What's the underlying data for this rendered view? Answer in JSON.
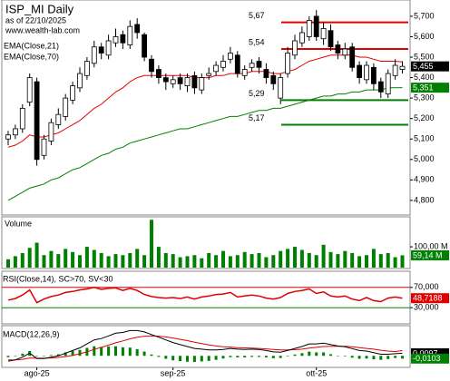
{
  "chart_data": [
    {
      "type": "candlestick",
      "title": "ISP_MI Daily",
      "subtitle": "as of 22/10/2025",
      "source": "www.wealth-lab.com",
      "categories": [
        null,
        null,
        null,
        null,
        "ago-25",
        null,
        null,
        null,
        null,
        null,
        null,
        null,
        null,
        null,
        null,
        null,
        null,
        null,
        null,
        null,
        null,
        null,
        null,
        "sep-25",
        null,
        null,
        null,
        null,
        null,
        null,
        null,
        null,
        null,
        null,
        null,
        null,
        null,
        null,
        null,
        null,
        null,
        null,
        null,
        "ott-25",
        null,
        null,
        null,
        null,
        null,
        null,
        null,
        null,
        null,
        null,
        null,
        null
      ],
      "open": [
        5.1,
        5.12,
        5.15,
        5.28,
        5.38,
        5.02,
        5.09,
        5.17,
        5.21,
        5.29,
        5.35,
        5.41,
        5.47,
        5.55,
        5.51,
        5.57,
        5.61,
        5.56,
        5.66,
        5.61,
        5.49,
        5.44,
        5.4,
        5.37,
        5.4,
        5.36,
        5.41,
        5.34,
        5.41,
        5.43,
        5.45,
        5.49,
        5.51,
        5.41,
        5.45,
        5.48,
        5.44,
        5.41,
        5.3,
        5.42,
        5.51,
        5.57,
        5.6,
        5.7,
        5.59,
        5.63,
        5.56,
        5.51,
        5.55,
        5.46,
        5.39,
        5.45,
        5.38,
        5.32,
        5.41,
        5.44
      ],
      "high": [
        5.14,
        5.17,
        5.27,
        5.42,
        5.4,
        5.12,
        5.2,
        5.25,
        5.32,
        5.38,
        5.45,
        5.5,
        5.58,
        5.57,
        5.61,
        5.64,
        5.63,
        5.68,
        5.69,
        5.62,
        5.51,
        5.46,
        5.42,
        5.41,
        5.42,
        5.42,
        5.43,
        5.42,
        5.45,
        5.48,
        5.51,
        5.55,
        5.53,
        5.46,
        5.49,
        5.5,
        5.47,
        5.43,
        5.42,
        5.55,
        5.61,
        5.65,
        5.7,
        5.73,
        5.67,
        5.66,
        5.58,
        5.57,
        5.57,
        5.48,
        5.48,
        5.47,
        5.4,
        5.44,
        5.49,
        5.48
      ],
      "low": [
        5.07,
        5.1,
        5.13,
        5.26,
        4.97,
        5.0,
        5.07,
        5.15,
        5.19,
        5.27,
        5.33,
        5.39,
        5.45,
        5.49,
        5.49,
        5.55,
        5.54,
        5.54,
        5.59,
        5.48,
        5.4,
        5.37,
        5.34,
        5.35,
        5.34,
        5.33,
        5.32,
        5.32,
        5.39,
        5.41,
        5.43,
        5.47,
        5.4,
        5.39,
        5.43,
        5.42,
        5.37,
        5.34,
        5.27,
        5.4,
        5.49,
        5.55,
        5.58,
        5.58,
        5.56,
        5.53,
        5.49,
        5.49,
        5.43,
        5.37,
        5.37,
        5.34,
        5.3,
        5.3,
        5.39,
        5.42
      ],
      "close": [
        5.12,
        5.15,
        5.25,
        5.4,
        5.0,
        5.1,
        5.18,
        5.22,
        5.3,
        5.36,
        5.42,
        5.48,
        5.55,
        5.52,
        5.58,
        5.6,
        5.57,
        5.65,
        5.62,
        5.5,
        5.43,
        5.4,
        5.38,
        5.39,
        5.37,
        5.4,
        5.35,
        5.4,
        5.42,
        5.46,
        5.48,
        5.52,
        5.42,
        5.44,
        5.47,
        5.45,
        5.4,
        5.37,
        5.4,
        5.52,
        5.58,
        5.62,
        5.68,
        5.6,
        5.64,
        5.55,
        5.52,
        5.54,
        5.45,
        5.4,
        5.46,
        5.37,
        5.33,
        5.42,
        5.46,
        5.455
      ],
      "series": [
        {
          "name": "EMA(Close,21)",
          "color": "#e00000",
          "values": [
            5.06,
            5.07,
            5.09,
            5.12,
            5.11,
            5.11,
            5.12,
            5.13,
            5.15,
            5.17,
            5.19,
            5.22,
            5.25,
            5.27,
            5.3,
            5.33,
            5.35,
            5.38,
            5.4,
            5.41,
            5.41,
            5.41,
            5.41,
            5.41,
            5.41,
            5.41,
            5.4,
            5.4,
            5.4,
            5.41,
            5.41,
            5.42,
            5.42,
            5.42,
            5.43,
            5.43,
            5.43,
            5.42,
            5.42,
            5.43,
            5.44,
            5.46,
            5.48,
            5.49,
            5.5,
            5.51,
            5.51,
            5.51,
            5.51,
            5.5,
            5.5,
            5.49,
            5.48,
            5.48,
            5.48,
            5.477
          ]
        },
        {
          "name": "EMA(Close,70)",
          "color": "#008000",
          "values": [
            4.8,
            4.82,
            4.84,
            4.86,
            4.87,
            4.88,
            4.9,
            4.91,
            4.93,
            4.95,
            4.96,
            4.98,
            5.0,
            5.02,
            5.03,
            5.05,
            5.06,
            5.08,
            5.09,
            5.1,
            5.11,
            5.12,
            5.13,
            5.14,
            5.15,
            5.15,
            5.16,
            5.17,
            5.18,
            5.19,
            5.2,
            5.21,
            5.21,
            5.22,
            5.23,
            5.24,
            5.24,
            5.25,
            5.25,
            5.26,
            5.27,
            5.28,
            5.29,
            5.3,
            5.31,
            5.31,
            5.32,
            5.32,
            5.33,
            5.33,
            5.34,
            5.34,
            5.34,
            5.35,
            5.35,
            5.351
          ]
        }
      ],
      "levels": [
        {
          "value": 5.67,
          "label": "5,67",
          "color": "#e00000"
        },
        {
          "value": 5.54,
          "label": "5,54",
          "color": "#e00000"
        },
        {
          "value": 5.29,
          "label": "5,29",
          "color": "#008000"
        },
        {
          "value": 5.17,
          "label": "5,17",
          "color": "#008000"
        }
      ],
      "markers": [
        {
          "value": 5.455,
          "label": "5,455",
          "color": "#000000"
        },
        {
          "value": 5.351,
          "label": "5,351",
          "color": "#008000"
        }
      ],
      "ylim": [
        4.733,
        5.775
      ],
      "yticks": [
        {
          "value": 4.8,
          "label": "4,800"
        },
        {
          "value": 4.9,
          "label": "4,900"
        },
        {
          "value": 5.0,
          "label": "5,000"
        },
        {
          "value": 5.1,
          "label": "5,100"
        },
        {
          "value": 5.2,
          "label": "5,200"
        },
        {
          "value": 5.3,
          "label": "5,300"
        },
        {
          "value": 5.4,
          "label": "5,400"
        },
        {
          "value": 5.5,
          "label": "5,500"
        },
        {
          "value": 5.6,
          "label": "5,600"
        },
        {
          "value": 5.7,
          "label": "5,700"
        }
      ]
    },
    {
      "type": "bar",
      "title": "Volume",
      "color": "#008000",
      "values": [
        40,
        55,
        70,
        95,
        120,
        60,
        80,
        65,
        90,
        75,
        60,
        100,
        85,
        70,
        55,
        65,
        60,
        70,
        90,
        60,
        230,
        100,
        70,
        65,
        50,
        55,
        60,
        45,
        70,
        60,
        80,
        55,
        60,
        75,
        65,
        70,
        50,
        60,
        80,
        90,
        100,
        85,
        70,
        60,
        110,
        75,
        65,
        80,
        70,
        55,
        60,
        90,
        65,
        70,
        50,
        59.14
      ],
      "markers": [
        {
          "value": 59.14,
          "label": "59,14 M",
          "color": "#008000"
        }
      ],
      "ylim": [
        0,
        240
      ],
      "yticks": [
        {
          "value": 100,
          "label": "100,00 M"
        }
      ]
    },
    {
      "type": "line",
      "title": "RSI(Close,14), SC>70, SV<30",
      "color": "#e00000",
      "values": [
        45,
        48,
        55,
        65,
        40,
        47,
        52,
        55,
        60,
        62,
        65,
        67,
        70,
        66,
        68,
        69,
        64,
        68,
        64,
        56,
        52,
        50,
        49,
        50,
        48,
        51,
        47,
        51,
        53,
        56,
        57,
        60,
        51,
        53,
        55,
        53,
        49,
        47,
        50,
        58,
        62,
        64,
        67,
        58,
        61,
        53,
        51,
        53,
        47,
        44,
        50,
        44,
        42,
        49,
        51,
        48.7188
      ],
      "markers": [
        {
          "value": 48.7188,
          "label": "48,7188",
          "color": "#e00000"
        }
      ],
      "ylim": [
        0,
        100
      ],
      "yticks": [
        {
          "value": 70,
          "label": "70,000"
        },
        {
          "value": 30,
          "label": "30,000"
        }
      ],
      "grid_colors": [
        "#e00000",
        "#008000"
      ]
    },
    {
      "type": "macd",
      "title": "MACD(12,26,9)",
      "color": "#000000",
      "signal_color": "#e00000",
      "histogram_color": "#008000",
      "values": [
        -0.02,
        -0.015,
        -0.005,
        0.01,
        -0.01,
        -0.01,
        -0.005,
        0.0,
        0.01,
        0.02,
        0.03,
        0.045,
        0.06,
        0.065,
        0.075,
        0.085,
        0.088,
        0.095,
        0.095,
        0.09,
        0.08,
        0.07,
        0.06,
        0.05,
        0.042,
        0.035,
        0.028,
        0.025,
        0.022,
        0.022,
        0.024,
        0.028,
        0.025,
        0.024,
        0.025,
        0.024,
        0.02,
        0.015,
        0.014,
        0.02,
        0.028,
        0.035,
        0.045,
        0.045,
        0.048,
        0.042,
        0.037,
        0.034,
        0.027,
        0.02,
        0.018,
        0.012,
        0.006,
        0.006,
        0.008,
        0.0097
      ],
      "signal": [
        -0.015,
        -0.015,
        -0.013,
        -0.008,
        -0.009,
        -0.009,
        -0.008,
        -0.006,
        -0.003,
        0.002,
        0.008,
        0.015,
        0.024,
        0.032,
        0.04,
        0.049,
        0.056,
        0.064,
        0.07,
        0.074,
        0.075,
        0.074,
        0.071,
        0.067,
        0.062,
        0.057,
        0.051,
        0.046,
        0.041,
        0.037,
        0.034,
        0.033,
        0.031,
        0.03,
        0.029,
        0.028,
        0.026,
        0.024,
        0.022,
        0.022,
        0.023,
        0.025,
        0.029,
        0.032,
        0.035,
        0.036,
        0.036,
        0.036,
        0.034,
        0.031,
        0.028,
        0.025,
        0.021,
        0.018,
        0.016,
        0.02
      ],
      "histogram": [
        -0.005,
        0,
        0.008,
        0.018,
        -0.001,
        -0.001,
        0.003,
        0.006,
        0.013,
        0.018,
        0.022,
        0.03,
        0.036,
        0.033,
        0.035,
        0.036,
        0.032,
        0.031,
        0.025,
        0.016,
        0.005,
        -0.004,
        -0.011,
        -0.017,
        -0.02,
        -0.022,
        -0.023,
        -0.021,
        -0.019,
        -0.015,
        -0.01,
        -0.005,
        -0.006,
        -0.006,
        -0.004,
        -0.004,
        -0.006,
        -0.009,
        -0.008,
        -0.002,
        0.005,
        0.01,
        0.016,
        0.013,
        0.013,
        0.006,
        0.001,
        -0.002,
        -0.007,
        -0.011,
        -0.01,
        -0.013,
        -0.015,
        -0.012,
        -0.008,
        -0.0103
      ],
      "markers": [
        {
          "value": 0.0097,
          "label": "0,0097",
          "color": "#000000"
        },
        {
          "value": -0.0103,
          "label": "-0,0103",
          "color": "#008000"
        }
      ],
      "ylim": [
        -0.04,
        0.11
      ]
    }
  ]
}
